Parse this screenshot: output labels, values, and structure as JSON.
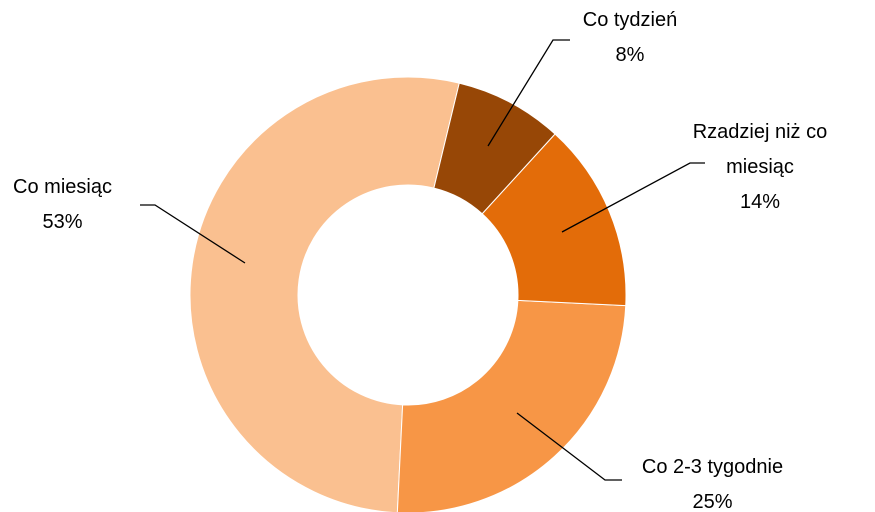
{
  "chart_data": {
    "type": "donut",
    "categories": [
      "Co tydzień",
      "Rzadziej niż co miesiąc",
      "Co 2-3 tygodnie",
      "Co miesiąc"
    ],
    "values": [
      8,
      14,
      25,
      53
    ],
    "value_labels": [
      "8%",
      "14%",
      "25%",
      "53%"
    ],
    "colors": [
      "#974706",
      "#e36c09",
      "#f79646",
      "#fac090"
    ]
  }
}
